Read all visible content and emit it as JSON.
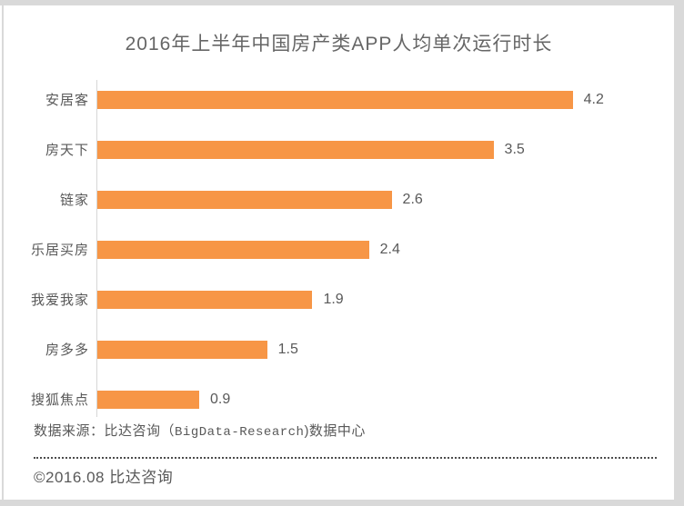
{
  "page": {
    "copyright": "©2016.08 比达咨询",
    "source_note": {
      "prefix": "数据来源：比达咨询（",
      "latin": "BigData-Research",
      "suffix": ")数据中心"
    }
  },
  "colors": {
    "bar": "#F79646",
    "axis_line": "#D6D6D6",
    "text": "#595959",
    "title_text": "#666666",
    "frame": "#D9D9D9",
    "dotted_divider": "#4D4D4D"
  },
  "chart_data": {
    "type": "bar",
    "orientation": "horizontal",
    "title": "2016年上半年中国房产类APP人均单次运行时长",
    "categories": [
      "安居客",
      "房天下",
      "链家",
      "乐居买房",
      "我爱我家",
      "房多多",
      "搜狐焦点"
    ],
    "values": [
      4.2,
      3.5,
      2.6,
      2.4,
      1.9,
      1.5,
      0.9
    ],
    "value_labels": [
      "4.2",
      "3.5",
      "2.6",
      "2.4",
      "1.9",
      "1.5",
      "0.9"
    ],
    "xlim": [
      0,
      4.5
    ],
    "xlabel": "",
    "ylabel": "",
    "grid": false,
    "legend": false,
    "value_labels_shown": true
  }
}
